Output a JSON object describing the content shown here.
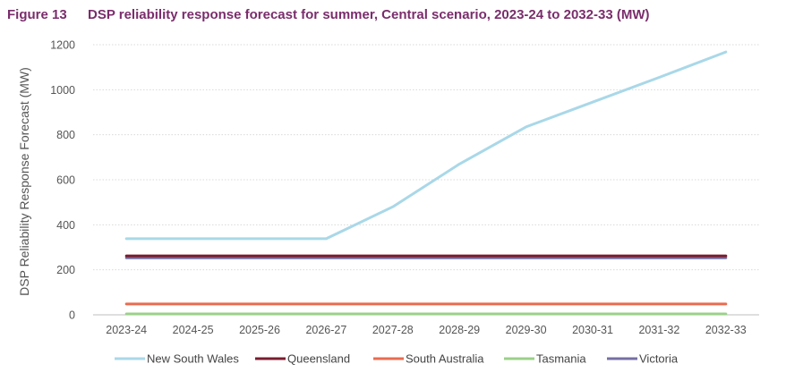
{
  "figure": {
    "label": "Figure 13",
    "title": "DSP reliability response forecast for summer, Central scenario, 2023-24 to 2032-33 (MW)"
  },
  "chart_data": {
    "type": "line",
    "title": "DSP reliability response forecast for summer, Central scenario, 2023-24 to 2032-33 (MW)",
    "xlabel": "",
    "ylabel": "DSP Reliability Response Forecast (MW)",
    "ylim": [
      0,
      1200
    ],
    "yticks": [
      0,
      200,
      400,
      600,
      800,
      1000,
      1200
    ],
    "grid": true,
    "legend_position": "bottom",
    "categories": [
      "2023-24",
      "2024-25",
      "2025-26",
      "2026-27",
      "2027-28",
      "2028-29",
      "2029-30",
      "2030-31",
      "2031-32",
      "2032-33"
    ],
    "series": [
      {
        "name": "New South Wales",
        "color": "#a9d8e8",
        "values": [
          338,
          338,
          338,
          338,
          480,
          670,
          835,
          945,
          1055,
          1168
        ]
      },
      {
        "name": "Queensland",
        "color": "#7b1c2e",
        "values": [
          262,
          262,
          262,
          262,
          262,
          262,
          262,
          262,
          262,
          262
        ]
      },
      {
        "name": "South Australia",
        "color": "#ea6b4f",
        "values": [
          48,
          48,
          48,
          48,
          48,
          48,
          48,
          48,
          48,
          48
        ]
      },
      {
        "name": "Tasmania",
        "color": "#9bd08a",
        "values": [
          4,
          4,
          4,
          4,
          4,
          4,
          4,
          4,
          4,
          4
        ]
      },
      {
        "name": "Victoria",
        "color": "#7470a4",
        "values": [
          253,
          253,
          253,
          253,
          253,
          253,
          253,
          253,
          253,
          253
        ]
      }
    ]
  }
}
